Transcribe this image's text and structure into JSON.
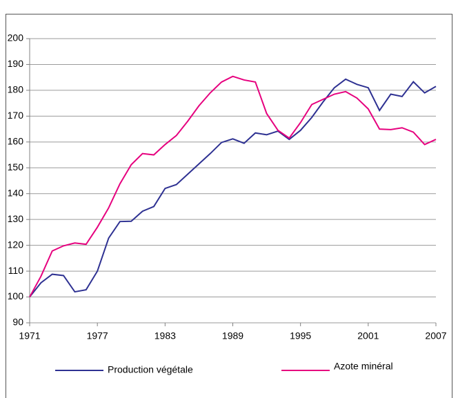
{
  "chart_data": {
    "type": "line",
    "x": [
      1971,
      1972,
      1973,
      1974,
      1975,
      1976,
      1977,
      1978,
      1979,
      1980,
      1981,
      1982,
      1983,
      1984,
      1985,
      1986,
      1987,
      1988,
      1989,
      1990,
      1991,
      1992,
      1993,
      1994,
      1995,
      1996,
      1997,
      1998,
      1999,
      2000,
      2001,
      2002,
      2003,
      2004,
      2005,
      2006,
      2007
    ],
    "series": [
      {
        "name": "Production végétale",
        "color": "#2e3192",
        "values": [
          100,
          105.5,
          108.8,
          108.3,
          102,
          102.8,
          110,
          122.8,
          129.2,
          129.3,
          133.2,
          135,
          142,
          143.5,
          147.5,
          151.5,
          155.5,
          159.8,
          161.2,
          159.5,
          163.5,
          162.8,
          164.2,
          161,
          164.5,
          169.5,
          175.5,
          181,
          184.3,
          182.3,
          181,
          172.2,
          178.5,
          177.6,
          183.3,
          179,
          181.5
        ]
      },
      {
        "name": "Azote minéral",
        "color": "#e6007e",
        "values": [
          100,
          108,
          117.8,
          119.8,
          120.9,
          120.4,
          127,
          134.5,
          143.8,
          151.2,
          155.5,
          155,
          159,
          162.5,
          168,
          174,
          179,
          183.2,
          185.4,
          184,
          183.2,
          171,
          164.5,
          161.5,
          167.5,
          174.5,
          176.5,
          178.5,
          179.5,
          177,
          172.8,
          165,
          164.8,
          165.5,
          163.8,
          159,
          161
        ]
      }
    ],
    "xlim": [
      1971,
      2007
    ],
    "xticks": [
      1971,
      1977,
      1983,
      1989,
      1995,
      2001,
      2007
    ],
    "ylim": [
      90,
      200
    ],
    "yticks": [
      90,
      100,
      110,
      120,
      130,
      140,
      150,
      160,
      170,
      180,
      190,
      200
    ],
    "grid": true
  }
}
